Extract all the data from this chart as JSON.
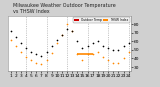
{
  "title": "Milwaukee Weather Outdoor Temperature",
  "subtitle": "vs THSW Index",
  "background_color": "#d0d0d0",
  "plot_bg_color": "#ffffff",
  "ylim": [
    25,
    90
  ],
  "xlim": [
    0.5,
    24.5
  ],
  "y_ticks": [
    30,
    40,
    50,
    60,
    70,
    80
  ],
  "x_ticks": [
    1,
    2,
    3,
    4,
    5,
    6,
    7,
    8,
    9,
    10,
    11,
    12,
    13,
    14,
    15,
    16,
    17,
    18,
    19,
    20,
    21,
    22,
    23,
    24
  ],
  "temp_color": "#000000",
  "thsw_color": "#ff8800",
  "legend_temp_color": "#cc0000",
  "legend_thsw_color": "#ff8800",
  "temp_data": [
    [
      1,
      72
    ],
    [
      2,
      65
    ],
    [
      3,
      58
    ],
    [
      4,
      52
    ],
    [
      5,
      48
    ],
    [
      6,
      45
    ],
    [
      7,
      43
    ],
    [
      8,
      48
    ],
    [
      9,
      55
    ],
    [
      10,
      62
    ],
    [
      11,
      68
    ],
    [
      12,
      75
    ],
    [
      13,
      72
    ],
    [
      14,
      60
    ],
    [
      15,
      52
    ],
    [
      16,
      55
    ],
    [
      17,
      58
    ],
    [
      18,
      60
    ],
    [
      19,
      55
    ],
    [
      20,
      52
    ],
    [
      21,
      50
    ],
    [
      22,
      50
    ],
    [
      23,
      55
    ],
    [
      24,
      58
    ]
  ],
  "thsw_data": [
    [
      1,
      62
    ],
    [
      2,
      55
    ],
    [
      3,
      48
    ],
    [
      4,
      42
    ],
    [
      5,
      38
    ],
    [
      6,
      35
    ],
    [
      7,
      33
    ],
    [
      8,
      38
    ],
    [
      9,
      46
    ],
    [
      10,
      58
    ],
    [
      11,
      68
    ],
    [
      12,
      80
    ],
    [
      13,
      72
    ],
    [
      14,
      45
    ],
    [
      15,
      38
    ],
    [
      16,
      45
    ],
    [
      17,
      45
    ],
    [
      18,
      48
    ],
    [
      19,
      42
    ],
    [
      20,
      38
    ],
    [
      21,
      35
    ],
    [
      22,
      35
    ],
    [
      23,
      40
    ],
    [
      24,
      48
    ]
  ],
  "thsw_hline_segments": [
    [
      14,
      17,
      45
    ]
  ],
  "vgrid_positions": [
    4,
    8,
    12,
    16,
    20,
    24
  ],
  "tick_fontsize": 3.2,
  "title_fontsize": 3.5,
  "legend_label_temp": "Outdoor Temp",
  "legend_label_thsw": "THSW Index"
}
